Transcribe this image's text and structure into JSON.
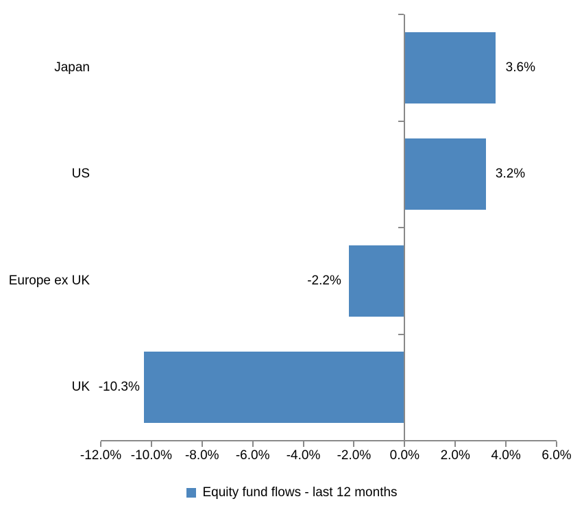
{
  "chart_data": {
    "type": "bar",
    "orientation": "horizontal",
    "title": "",
    "categories": [
      "Japan",
      "US",
      "Europe ex UK",
      "UK"
    ],
    "values": [
      3.6,
      3.2,
      -2.2,
      -10.3
    ],
    "value_labels": [
      "3.6%",
      "3.2%",
      "-2.2%",
      "-10.3%"
    ],
    "series": [
      {
        "name": "Equity fund flows - last 12 months",
        "values": [
          3.6,
          3.2,
          -2.2,
          -10.3
        ]
      }
    ],
    "x_axis": {
      "min": -12,
      "max": 6,
      "tick_step": 2,
      "tick_values": [
        -12,
        -10,
        -8,
        -6,
        -4,
        -2,
        0,
        2,
        4,
        6
      ],
      "tick_labels": [
        "-12.0%",
        "-10.0%",
        "-8.0%",
        "-6.0%",
        "-4.0%",
        "-2.0%",
        "0.0%",
        "2.0%",
        "4.0%",
        "6.0%"
      ]
    },
    "y_axis": {
      "label": ""
    },
    "grid": false,
    "legend": {
      "position": "bottom",
      "label": "Equity fund flows - last 12 months"
    },
    "colors": {
      "bar": "#4e87be",
      "axis": "#898989",
      "text": "#000000",
      "background": "#ffffff"
    }
  }
}
